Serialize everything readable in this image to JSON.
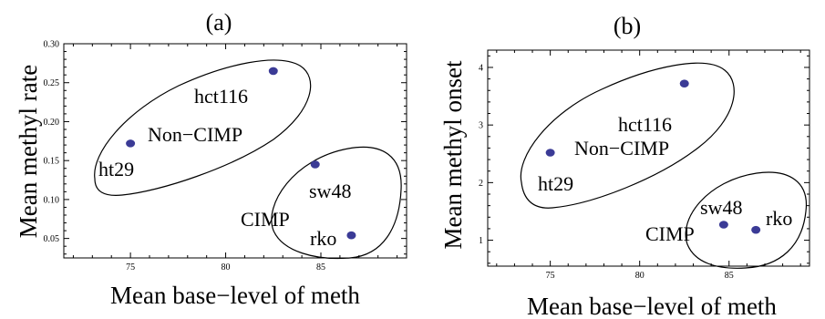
{
  "chart_data": [
    {
      "type": "scatter",
      "title": "(a)",
      "xlabel": "Mean base−level of meth",
      "ylabel": "Mean methyl rate",
      "xlim": [
        71.5,
        89.5
      ],
      "ylim": [
        0.025,
        0.3
      ],
      "xticks": [
        75,
        80,
        85
      ],
      "xtick_labels": [
        "75",
        "80",
        "85"
      ],
      "yticks": [
        0.05,
        0.1,
        0.15,
        0.2,
        0.25,
        0.3
      ],
      "ytick_labels": [
        "0.05",
        "0.10",
        "0.15",
        "0.20",
        "0.25",
        "0.30"
      ],
      "grid": false,
      "point_color": "#3b3b96",
      "points": [
        {
          "label": "hct116",
          "x": 82.5,
          "y": 0.265
        },
        {
          "label": "ht29",
          "x": 75.0,
          "y": 0.172
        },
        {
          "label": "sw48",
          "x": 84.7,
          "y": 0.145
        },
        {
          "label": "rko",
          "x": 86.6,
          "y": 0.054
        }
      ],
      "groups": [
        "Non−CIMP",
        "CIMP"
      ]
    },
    {
      "type": "scatter",
      "title": "(b)",
      "xlabel": "Mean base−level of meth",
      "ylabel": "Mean methyl onset",
      "xlim": [
        71.5,
        89.5
      ],
      "ylim": [
        0.55,
        4.3
      ],
      "xticks": [
        75,
        80,
        85
      ],
      "xtick_labels": [
        "75",
        "80",
        "85"
      ],
      "yticks": [
        1,
        2,
        3,
        4
      ],
      "ytick_labels": [
        "1",
        "2",
        "3",
        "4"
      ],
      "grid": false,
      "point_color": "#3b3b96",
      "points": [
        {
          "label": "hct116",
          "x": 82.5,
          "y": 3.72
        },
        {
          "label": "ht29",
          "x": 75.0,
          "y": 2.52
        },
        {
          "label": "sw48",
          "x": 84.7,
          "y": 1.27
        },
        {
          "label": "rko",
          "x": 86.5,
          "y": 1.18
        }
      ],
      "groups": [
        "Non−CIMP",
        "CIMP"
      ]
    }
  ]
}
